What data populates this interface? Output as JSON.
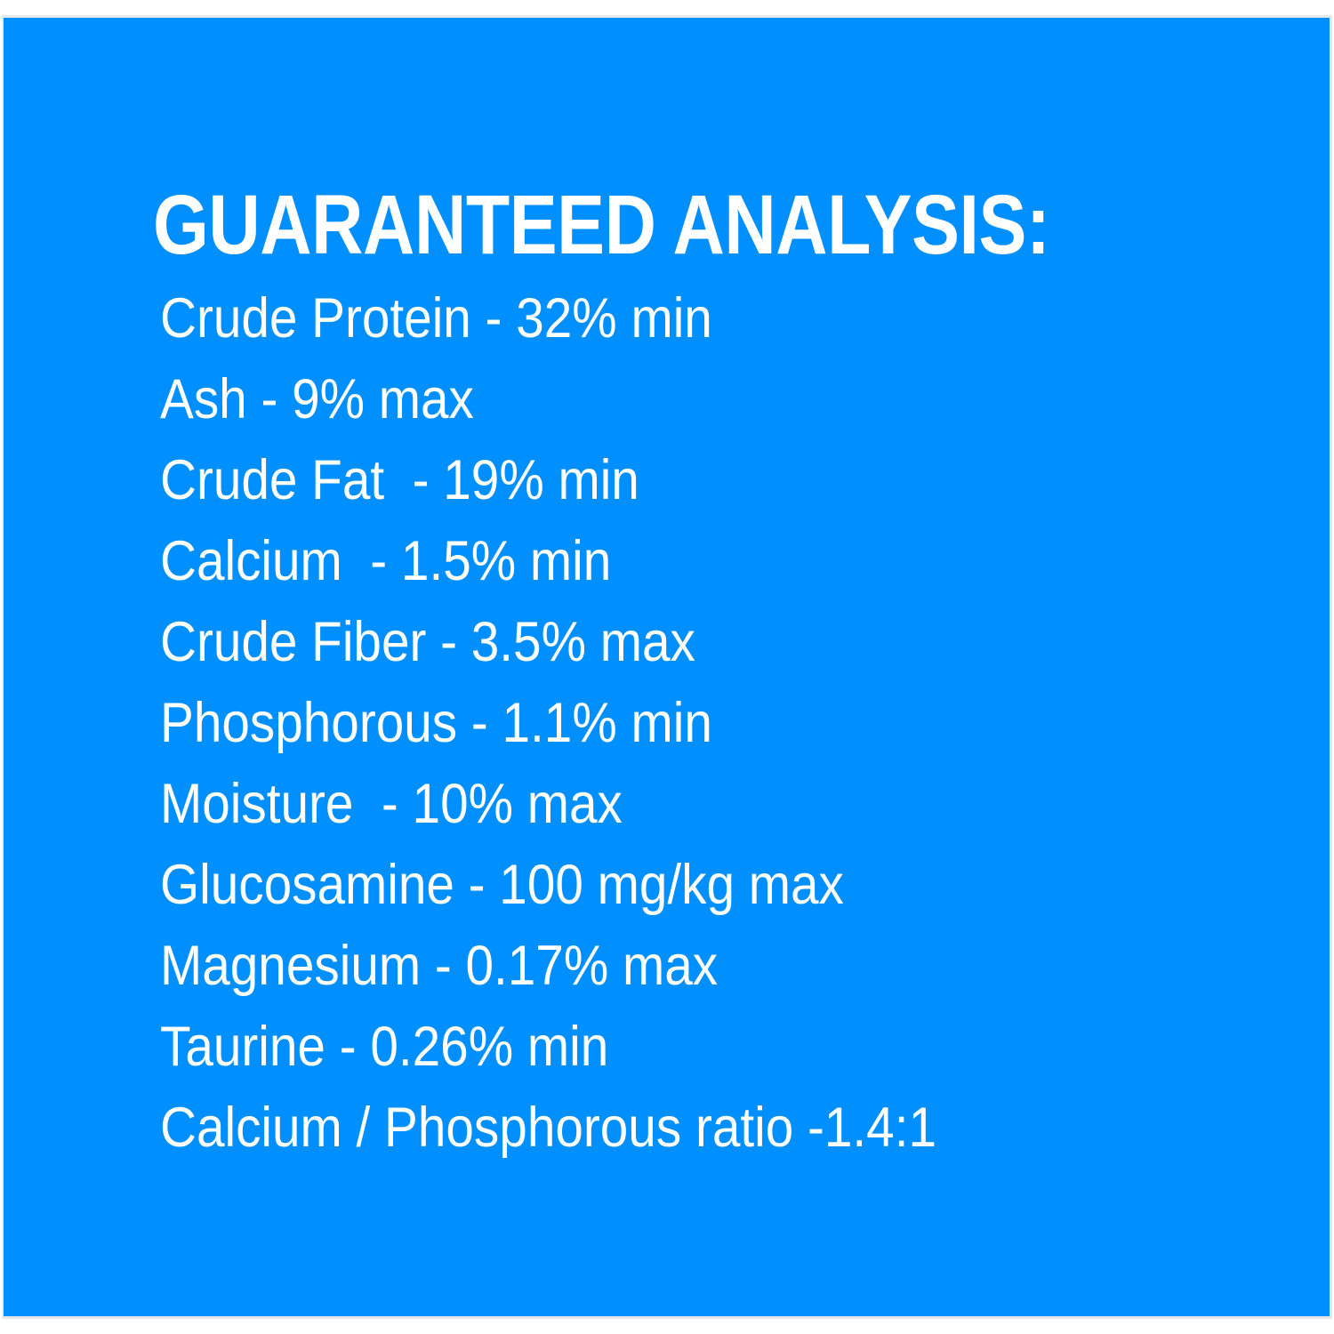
{
  "colors": {
    "background": "#008ffe",
    "text": "#ffffff"
  },
  "title": "GUARANTEED ANALYSIS:",
  "items": [
    "Crude Protein - 32% min",
    "Ash - 9% max",
    "Crude Fat  - 19% min",
    "Calcium  - 1.5% min",
    "Crude Fiber - 3.5% max",
    "Phosphorous - 1.1% min",
    "Moisture  - 10% max",
    "Glucosamine - 100 mg/kg max",
    "Magnesium - 0.17% max",
    "Taurine - 0.26% min",
    "Calcium / Phosphorous ratio -1.4:1"
  ]
}
